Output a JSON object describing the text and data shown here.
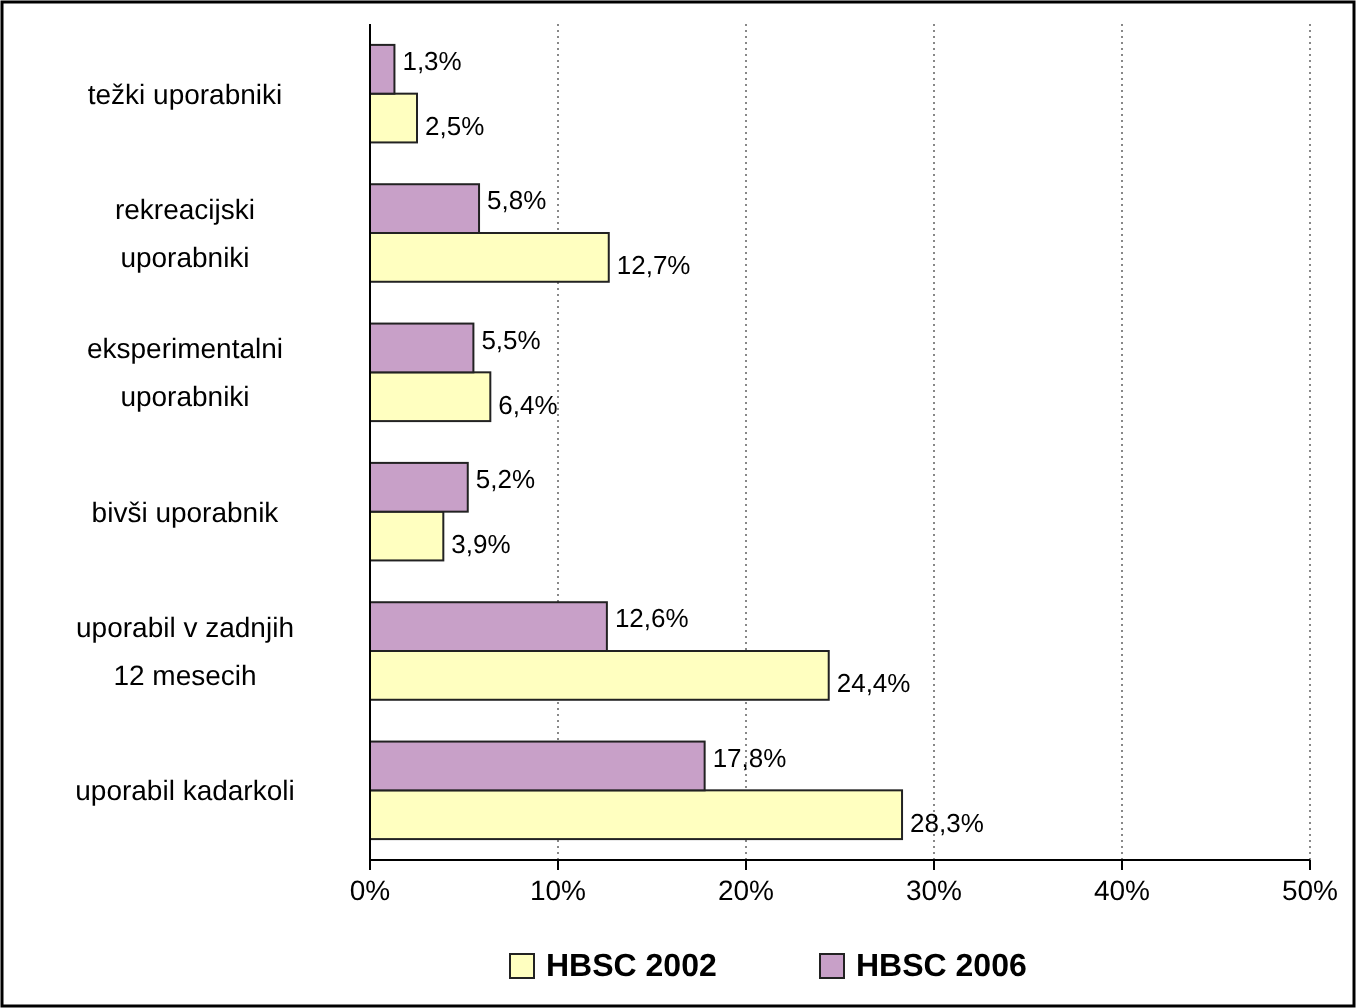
{
  "chart_data": {
    "type": "bar",
    "orientation": "horizontal",
    "categories": [
      "težki uporabniki",
      "rekreacijski uporabniki",
      "eksperimentalni uporabniki",
      "bivši uporabnik",
      "uporabil v zadnjih 12 mesecih",
      "uporabil kadarkoli"
    ],
    "series": [
      {
        "name": "HBSC 2002",
        "color": "#ffffc0",
        "values": [
          2.5,
          12.7,
          6.4,
          3.9,
          24.4,
          28.3
        ],
        "value_labels": [
          "2,5%",
          "12,7%",
          "6,4%",
          "3,9%",
          "24,4%",
          "28,3%"
        ]
      },
      {
        "name": "HBSC 2006",
        "color": "#c8a0c8",
        "values": [
          1.3,
          5.8,
          5.5,
          5.2,
          12.6,
          17.8
        ],
        "value_labels": [
          "1,3%",
          "5,8%",
          "5,5%",
          "5,2%",
          "12,6%",
          "17,8%"
        ]
      }
    ],
    "xlim": [
      0,
      50
    ],
    "xticks": [
      {
        "value": 0,
        "label": "0%"
      },
      {
        "value": 10,
        "label": "10%"
      },
      {
        "value": 20,
        "label": "20%"
      },
      {
        "value": 30,
        "label": "30%"
      },
      {
        "value": 40,
        "label": "40%"
      },
      {
        "value": 50,
        "label": "50%"
      }
    ],
    "grid": "x",
    "legend": "bottom"
  }
}
